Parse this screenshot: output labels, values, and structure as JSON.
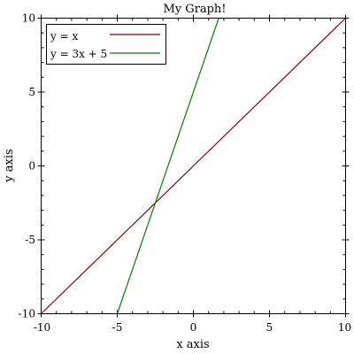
{
  "chart_data": {
    "type": "line",
    "title": "My Graph!",
    "xlabel": "x axis",
    "ylabel": "y axis",
    "xlim": [
      -10,
      10
    ],
    "ylim": [
      -10,
      10
    ],
    "xticks": [
      -10,
      -5,
      0,
      5,
      10
    ],
    "yticks": [
      -10,
      -5,
      0,
      5,
      10
    ],
    "xtick_labels": [
      "-10",
      "-5",
      "0",
      "5",
      "10"
    ],
    "ytick_labels": [
      "-10",
      "-5",
      "0",
      "5",
      "10"
    ],
    "grid": false,
    "legend_position": "top-left",
    "series": [
      {
        "name": "y = x",
        "color": "#8b0000",
        "x": [
          -10,
          10
        ],
        "y": [
          -10,
          10
        ]
      },
      {
        "name": "y = 3x + 5",
        "color": "#008000",
        "x": [
          -5,
          1.6667
        ],
        "y": [
          -10,
          10
        ]
      }
    ]
  }
}
